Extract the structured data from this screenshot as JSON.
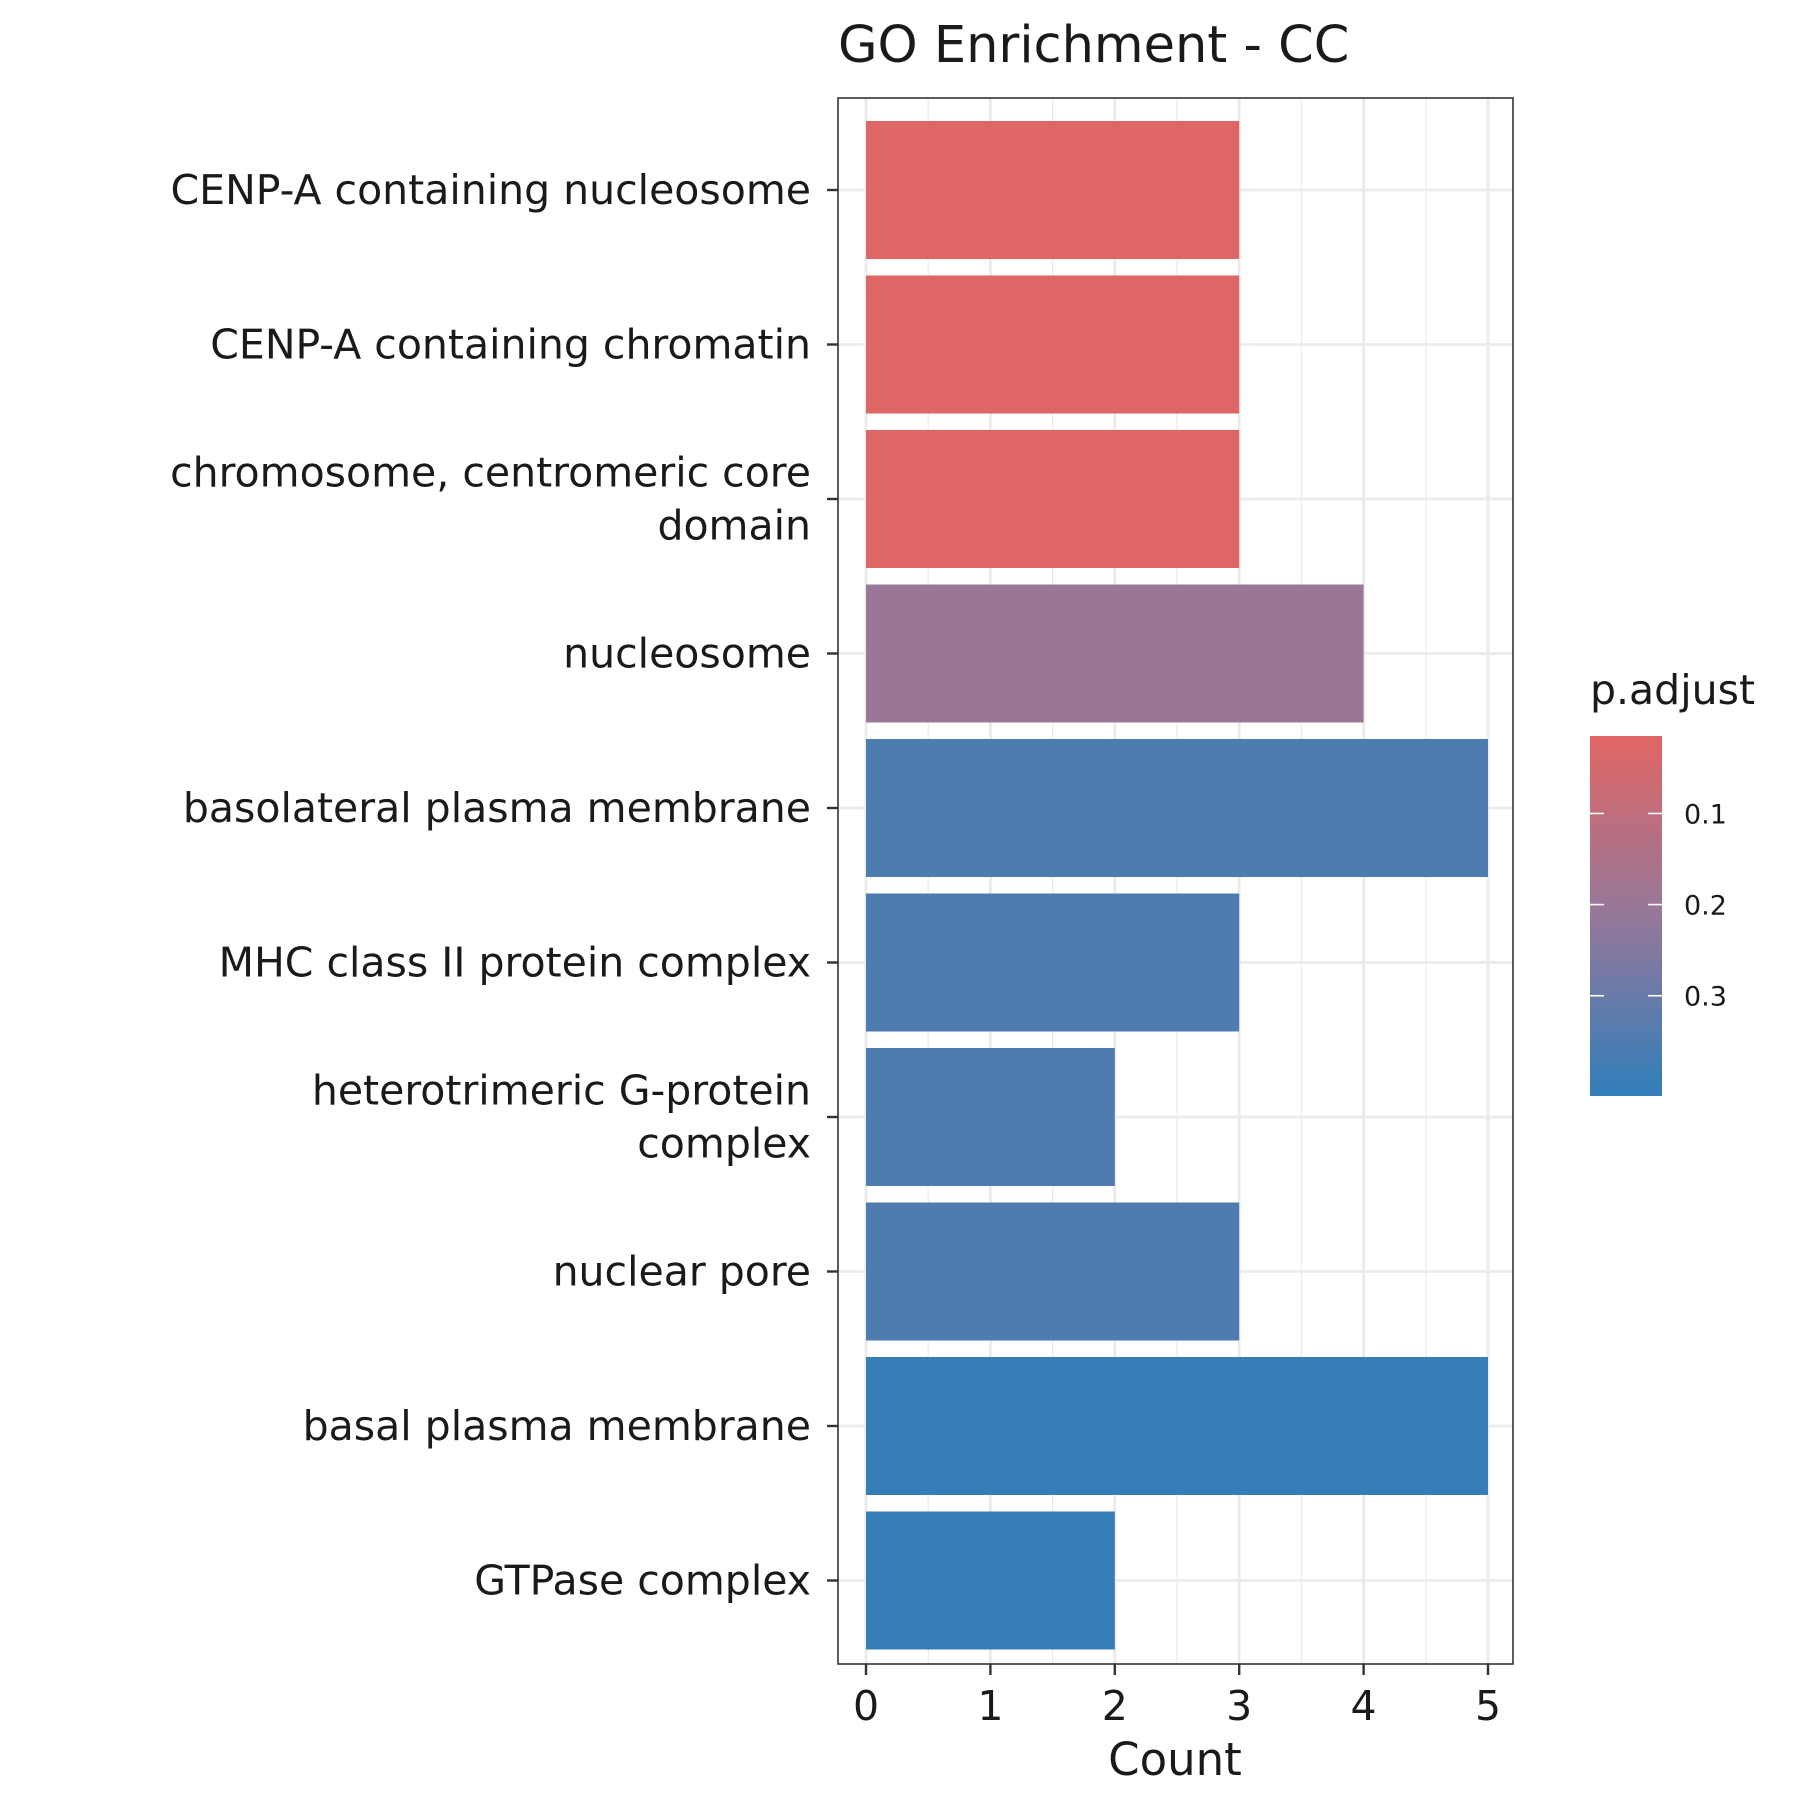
{
  "chart_data": {
    "type": "bar",
    "orientation": "horizontal",
    "title": "GO Enrichment - CC",
    "xlabel": "Count",
    "ylabel": "",
    "xlim": [
      0,
      5.25
    ],
    "xticks": [
      "0",
      "1",
      "2",
      "3",
      "4",
      "5"
    ],
    "grid": true,
    "categories": [
      [
        "CENP-A containing nucleosome"
      ],
      [
        "CENP-A containing chromatin"
      ],
      [
        "chromosome, centromeric core",
        "domain"
      ],
      [
        "nucleosome"
      ],
      [
        "basolateral plasma membrane"
      ],
      [
        "MHC class II protein complex"
      ],
      [
        "heterotrimeric G-protein",
        "complex"
      ],
      [
        "nuclear pore"
      ],
      [
        "basal plasma membrane"
      ],
      [
        "GTPase complex"
      ]
    ],
    "values": [
      3,
      3,
      3,
      4,
      5,
      3,
      2,
      3,
      5,
      2
    ],
    "p_adjust": [
      0.02,
      0.02,
      0.02,
      0.2,
      0.35,
      0.35,
      0.35,
      0.35,
      0.4,
      0.4
    ],
    "legend": {
      "title": "p.adjust",
      "position": "right",
      "ticks": [
        "0.1",
        "0.2",
        "0.3"
      ],
      "tick_values": [
        0.1,
        0.2,
        0.3
      ],
      "range": [
        0.015,
        0.41
      ],
      "color_low": "#E06664",
      "color_high": "#317EBA"
    }
  }
}
